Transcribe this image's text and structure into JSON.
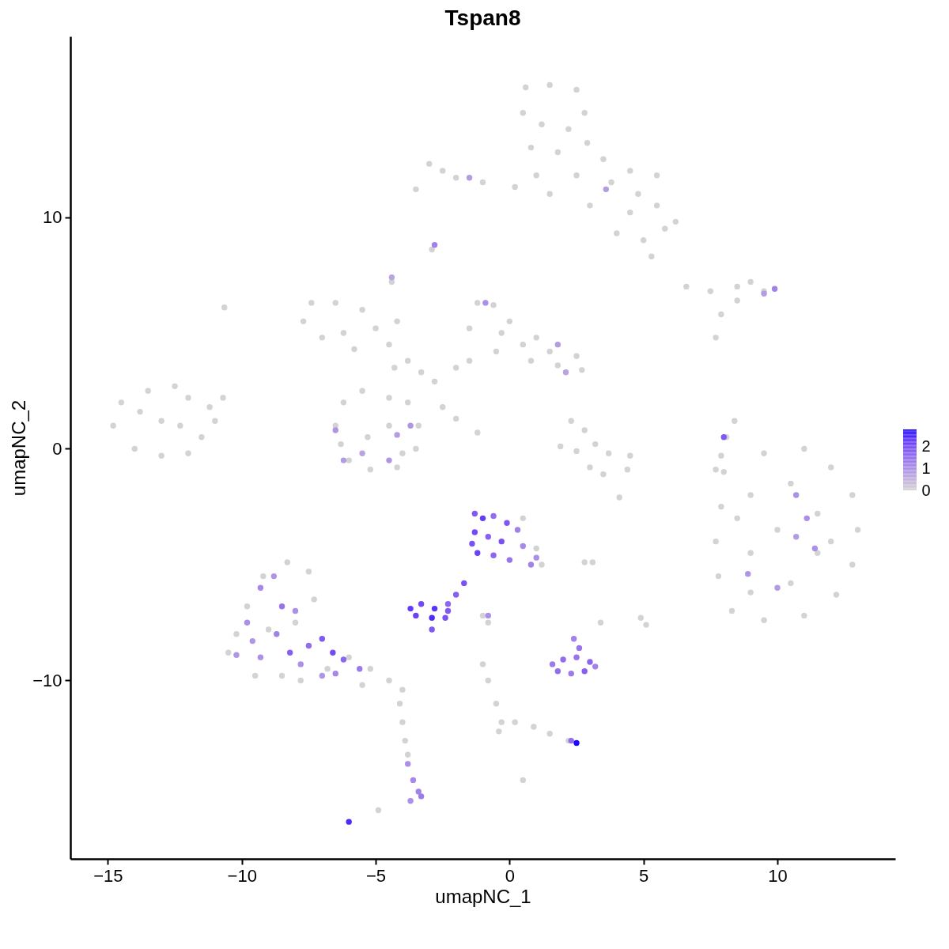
{
  "chart_data": {
    "type": "scatter",
    "title": "Tspan8",
    "xlabel": "umapNC_1",
    "ylabel": "umapNC_2",
    "marker": "circle",
    "grid": false,
    "xlim": [
      -16.4,
      14.4
    ],
    "ylim": [
      -17.7,
      17.8
    ],
    "xticks": [
      -15,
      -10,
      -5,
      0,
      5,
      10
    ],
    "yticks": [
      -10,
      0,
      10
    ],
    "clim": [
      0,
      2.75
    ],
    "cticks": [
      0,
      1,
      2
    ],
    "x": [
      0.6,
      1.5,
      2.5,
      2.8,
      0.5,
      1.2,
      2.2,
      0.8,
      1.8,
      2.9,
      3.5,
      4.5,
      5.5,
      4.8,
      5.5,
      6.2,
      5.8,
      4.5,
      4.0,
      5.0,
      3.8,
      1.0,
      1.5,
      0.2,
      -1.0,
      -2.0,
      -3.0,
      -3.5,
      -2.5,
      3.0,
      2.5,
      5.3,
      -2.9,
      -7.7,
      -7.4,
      -6.5,
      -5.5,
      -5.0,
      -6.2,
      -7.0,
      -5.8,
      -4.5,
      -4.3,
      -3.8,
      -3.3,
      -2.8,
      -4.4,
      -4.2,
      -1.5,
      -1.2,
      -0.6,
      0,
      0.5,
      1.5,
      2.5,
      2.7,
      1.8,
      0.8,
      -0.5,
      -1.5,
      -2.0,
      -0.3,
      1.0,
      -6.5,
      -6.2,
      -5.5,
      -4.5,
      -3.8,
      -3.4,
      -3.5,
      -4.2,
      -5.2,
      -6.0,
      -6.3,
      -5.3,
      -4.5,
      -4.0,
      -2.0,
      -1.2,
      -2.5,
      -14.8,
      -14.5,
      -13.5,
      -12.5,
      -12.0,
      -11.2,
      -10.7,
      -11.0,
      -11.5,
      -12.0,
      -13.0,
      -14.0,
      -13.0,
      -12.3,
      -13.8,
      -10.65,
      2.3,
      2.8,
      3.2,
      3.7,
      4.5,
      4.4,
      3.5,
      2.5,
      1.9,
      3.0,
      6.6,
      7.5,
      8.5,
      9.0,
      9.5,
      8.5,
      7.9,
      7.7,
      8.4,
      8.1,
      7.9,
      7.7,
      8.0,
      9.5,
      11.0,
      12.0,
      12.8,
      13.0,
      12.8,
      12.2,
      11.0,
      9.5,
      8.3,
      7.8,
      7.7,
      7.9,
      9.0,
      10.5,
      11.5,
      10.0,
      9.0,
      11.5,
      10.5,
      9.0,
      12.0,
      8.5,
      -10.5,
      -10.2,
      -9.8,
      -9.2,
      -8.3,
      -7.5,
      -7.3,
      -8.5,
      -9.5,
      -7.8,
      -6.8,
      -6.0,
      -5.2,
      -4.5,
      -4.0,
      -5.5,
      -8.0,
      -9.0,
      -4.1,
      -4.0,
      -3.9,
      -3.8,
      -1.0,
      -0.8,
      -0.5,
      -0.3,
      -0.4,
      0.2,
      0.9,
      1.5,
      2.2,
      0.5,
      1.2,
      1.0,
      0.5,
      2.8,
      3.1,
      4.9,
      5.1,
      3.4,
      -1.0,
      -0.8,
      -4.9,
      4.1,
      -1.3,
      -1.0,
      -0.6,
      -0.1,
      0.3,
      -1.3,
      -0.8,
      -0.3,
      0.5,
      1.0,
      -1.2,
      -0.6,
      0.0,
      -1.4,
      0.8,
      -1.7,
      -2.0,
      -2.3,
      -3.7,
      -3.3,
      -2.8,
      -2.3,
      -3.5,
      -2.9,
      -2.4,
      -2.9,
      -0.8,
      1.6,
      2.0,
      2.5,
      3.0,
      1.8,
      2.3,
      2.8,
      3.2,
      2.6,
      2.4,
      2.3,
      2.5,
      -3.8,
      -3.6,
      -3.4,
      -3.7,
      -3.3,
      -6.0,
      -10.2,
      -9.8,
      -9.3,
      -8.8,
      -8.5,
      -8.0,
      -8.7,
      -8.2,
      -9.3,
      -7.5,
      -7.0,
      -6.6,
      -6.2,
      -5.6,
      -9.6,
      -7.8,
      -7.0,
      -6.5,
      -0.9,
      1.8,
      2.1,
      -6.5,
      -6.2,
      -5.5,
      -4.2,
      -3.7,
      -4.5,
      8.0,
      10.7,
      11.1,
      10.7,
      11.4,
      10.0,
      8.9,
      9.9,
      9.5,
      -2.8,
      -4.4,
      -1.5,
      3.6
    ],
    "values": [
      15.6,
      15.7,
      15.5,
      14.5,
      14.5,
      14.0,
      13.8,
      13.0,
      12.8,
      13.2,
      12.5,
      12.0,
      11.8,
      11.0,
      10.5,
      9.8,
      9.5,
      10.2,
      9.3,
      9.0,
      11.5,
      11.8,
      11.0,
      11.3,
      11.5,
      11.7,
      12.3,
      11.2,
      12.0,
      10.5,
      11.8,
      8.3,
      8.6,
      5.5,
      6.3,
      6.3,
      6.0,
      5.2,
      5.0,
      4.8,
      4.3,
      4.5,
      3.5,
      3.8,
      3.3,
      2.9,
      7.2,
      5.5,
      5.2,
      6.3,
      6.2,
      5.5,
      4.5,
      4.2,
      4.0,
      3.4,
      3.6,
      3.8,
      4.2,
      3.8,
      3.5,
      5.0,
      4.8,
      1.0,
      2.0,
      2.5,
      2.2,
      2.0,
      1.0,
      0,
      -0.8,
      -0.9,
      -0.5,
      0.2,
      0.5,
      1.0,
      -0.2,
      1.3,
      0.7,
      1.8,
      1.0,
      2.0,
      2.5,
      2.7,
      2.2,
      1.8,
      2.2,
      1.2,
      0.5,
      -0.2,
      -0.3,
      0,
      1.2,
      1.0,
      1.6,
      6.1,
      1.2,
      0.8,
      0.2,
      -0.2,
      -0.3,
      -0.9,
      -1.1,
      -0.1,
      0.1,
      -0.8,
      7.0,
      6.8,
      7.0,
      7.2,
      6.8,
      6.4,
      5.8,
      4.8,
      1.2,
      0.5,
      -0.3,
      -0.9,
      -1.0,
      -0.2,
      0,
      -0.8,
      -2.0,
      -3.5,
      -5.0,
      -6.3,
      -7.2,
      -7.4,
      -7.0,
      -5.5,
      -4.0,
      -2.5,
      -2.0,
      -1.5,
      -2.8,
      -3.5,
      -4.5,
      -4.5,
      -5.8,
      -6.2,
      -4.0,
      -3.0,
      -8.8,
      -8.0,
      -6.8,
      -5.5,
      -4.9,
      -5.3,
      -6.5,
      -9.8,
      -9.8,
      -10.0,
      -9.5,
      -9.0,
      -9.5,
      -10.0,
      -10.4,
      -10.2,
      -7.5,
      -7.8,
      -11.0,
      -11.8,
      -12.6,
      -13.2,
      -9.3,
      -10.0,
      -11.0,
      -11.8,
      -12.2,
      -11.8,
      -12.0,
      -12.3,
      -12.6,
      -14.3,
      -5.0,
      -4.3,
      -3.0,
      -4.9,
      -4.9,
      -7.3,
      -7.6,
      -7.5,
      -7.2,
      -7.5,
      -15.6,
      -2.1,
      -2.8,
      -3.0,
      -2.9,
      -3.2,
      -3.5,
      -3.6,
      -3.8,
      -4.0,
      -4.2,
      -4.7,
      -4.5,
      -4.6,
      -4.8,
      -4.1,
      -5.0,
      -5.8,
      -6.3,
      -6.7,
      -6.9,
      -6.7,
      -6.9,
      -7.0,
      -7.2,
      -7.3,
      -7.3,
      -7.8,
      -7.2,
      -9.3,
      -9.1,
      -9.0,
      -9.2,
      -9.6,
      -9.7,
      -9.6,
      -9.4,
      -8.6,
      -8.2,
      -12.6,
      -12.7,
      -13.6,
      -14.3,
      -14.8,
      -15.2,
      -15.0,
      -16.1,
      -8.9,
      -7.5,
      -6.0,
      -5.5,
      -6.8,
      -7.0,
      -8.0,
      -8.8,
      -9.0,
      -8.5,
      -8.2,
      -8.8,
      -9.1,
      -9.5,
      -8.3,
      -9.3,
      -9.8,
      -9.7,
      6.3,
      4.5,
      3.3,
      0.8,
      -0.5,
      -0.2,
      0.6,
      1.0,
      -0.5,
      0.5,
      -2.0,
      -3.0,
      -3.8,
      -4.3,
      -6.0,
      -5.4,
      6.9,
      6.7,
      8.8,
      7.4,
      11.7,
      11.2
    ],
    "cvalues": [
      0,
      0,
      0,
      0,
      0,
      0,
      0,
      0,
      0,
      0,
      0,
      0,
      0,
      0,
      0,
      0,
      0,
      0,
      0,
      0,
      0,
      0,
      0,
      0,
      0,
      0,
      0,
      0,
      0,
      0,
      0,
      0,
      0,
      0,
      0,
      0,
      0,
      0,
      0,
      0,
      0,
      0,
      0,
      0,
      0,
      0,
      0,
      0,
      0,
      0,
      0,
      0,
      0,
      0,
      0,
      0,
      0,
      0,
      0,
      0,
      0,
      0,
      0,
      0,
      0,
      0,
      0,
      0,
      0,
      0,
      0,
      0,
      0,
      0,
      0,
      0,
      0,
      0,
      0,
      0,
      0,
      0,
      0,
      0,
      0,
      0,
      0,
      0,
      0,
      0,
      0,
      0,
      0,
      0,
      0,
      0,
      0,
      0,
      0,
      0,
      0,
      0,
      0,
      0,
      0,
      0,
      0,
      0,
      0,
      0,
      0,
      0,
      0,
      0,
      0,
      0,
      0,
      0,
      0,
      0,
      0,
      0,
      0,
      0,
      0,
      0,
      0,
      0,
      0,
      0,
      0,
      0,
      0,
      0,
      0,
      0,
      0,
      0,
      0,
      0,
      0,
      0,
      0,
      0,
      0,
      0,
      0,
      0,
      0,
      0,
      0,
      0,
      0,
      0,
      0,
      0,
      0,
      0,
      0,
      0,
      0,
      0,
      0,
      0,
      0,
      0,
      0,
      0,
      0,
      0,
      0,
      0,
      0,
      0,
      0,
      0,
      0,
      0,
      0,
      0,
      0,
      0,
      0,
      0,
      0,
      0,
      1.8,
      2.2,
      1.5,
      1.8,
      1.2,
      2.0,
      1.7,
      1.9,
      1.1,
      1.0,
      2.1,
      1.6,
      1.4,
      1.9,
      1.2,
      1.9,
      1.7,
      1.6,
      2.2,
      2.0,
      2.3,
      1.8,
      2.1,
      2.4,
      1.9,
      1.8,
      1.0,
      1.3,
      1.5,
      1.4,
      1.6,
      1.5,
      1.3,
      1.7,
      1.2,
      1.4,
      1.2,
      1.5,
      2.7,
      1.0,
      1.1,
      1.2,
      1.0,
      1.3,
      2.4,
      0.9,
      1.0,
      1.1,
      0.9,
      1.4,
      1.0,
      1.2,
      1.7,
      1.0,
      1.5,
      1.8,
      2.0,
      1.6,
      1.3,
      0.9,
      1.0,
      0.9,
      1.1,
      1.0,
      0.8,
      0.7,
      0.9,
      0.8,
      0.7,
      0.8,
      0.9,
      0.9,
      1.8,
      1.0,
      1.0,
      0.8,
      1.0,
      0.8,
      0.9,
      1.2,
      0.8,
      1.2,
      0.7,
      0.8,
      0.8
    ]
  }
}
